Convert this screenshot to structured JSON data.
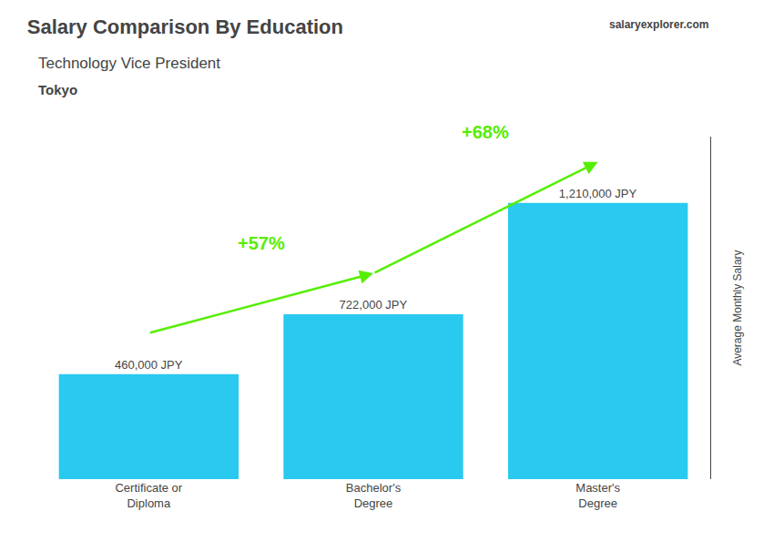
{
  "chart_data": {
    "type": "bar",
    "title": "Salary Comparison By Education",
    "subtitle": "Technology Vice President",
    "location": "Tokyo",
    "source": "salaryexplorer.com",
    "ylabel": "Average Monthly Salary",
    "categories": [
      "Certificate or\nDiploma",
      "Bachelor's\nDegree",
      "Master's\nDegree"
    ],
    "values": [
      460000,
      722000,
      1210000
    ],
    "value_labels": [
      "460,000 JPY",
      "722,000 JPY",
      "1,210,000 JPY"
    ],
    "data_labels": true,
    "color": "#29c9f0",
    "ylim": [
      0,
      1500000
    ],
    "yticks": [],
    "tick_labels": "x",
    "grid": false,
    "annotations": [
      {
        "text": "+57%",
        "from": "Certificate or\nDiploma",
        "to": "Bachelor's\nDegree",
        "color": "#55ee00"
      },
      {
        "text": "+68%",
        "from": "Bachelor's\nDegree",
        "to": "Master's\nDegree",
        "color": "#55ee00"
      }
    ]
  }
}
